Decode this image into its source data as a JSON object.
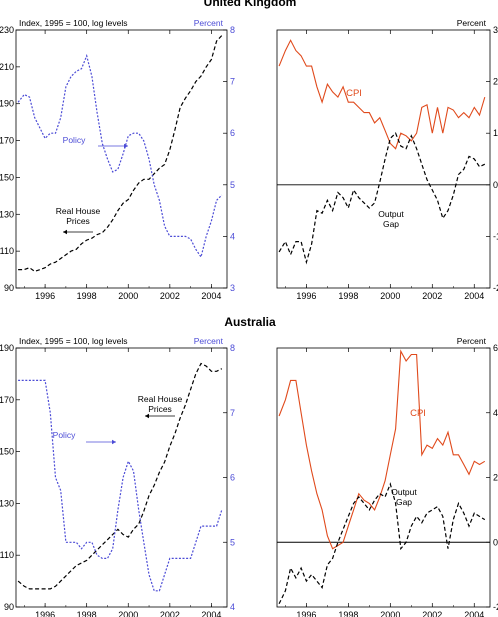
{
  "sections": [
    {
      "title": "United Kingdom"
    },
    {
      "title": "Australia"
    }
  ],
  "chart_data": [
    {
      "type": "line",
      "id": "uk-left",
      "title": "United Kingdom",
      "left_axis_label": "Index, 1995 = 100, log levels",
      "right_axis_label": "Percent",
      "xlim": [
        1994.6,
        2004.75
      ],
      "x_ticks": [
        1996,
        1998,
        2000,
        2002,
        2004
      ],
      "y_left": {
        "lim": [
          90,
          230
        ],
        "ticks": [
          90,
          110,
          130,
          150,
          170,
          190,
          210,
          230
        ]
      },
      "y_right": {
        "lim": [
          3,
          8
        ],
        "ticks": [
          3,
          4,
          5,
          6,
          7,
          8
        ]
      },
      "series": [
        {
          "name": "Real House Prices",
          "axis": "left",
          "color": "#000000",
          "dash": "long",
          "x": [
            1994.7,
            1995.0,
            1995.25,
            1995.5,
            1995.75,
            1996.0,
            1996.25,
            1996.5,
            1996.75,
            1997.0,
            1997.25,
            1997.5,
            1997.75,
            1998.0,
            1998.25,
            1998.5,
            1998.75,
            1999.0,
            1999.25,
            1999.5,
            1999.75,
            2000.0,
            2000.25,
            2000.5,
            2000.75,
            2001.0,
            2001.25,
            2001.5,
            2001.75,
            2002.0,
            2002.25,
            2002.5,
            2002.75,
            2003.0,
            2003.25,
            2003.5,
            2003.75,
            2004.0,
            2004.25,
            2004.5
          ],
          "y": [
            100,
            100,
            101,
            99,
            100,
            101,
            103,
            104,
            106,
            108,
            110,
            111,
            114,
            116,
            117,
            119,
            120,
            123,
            127,
            132,
            136,
            138,
            143,
            147,
            149,
            149,
            152,
            155,
            157,
            165,
            176,
            188,
            193,
            197,
            202,
            205,
            210,
            214,
            224,
            227
          ]
        },
        {
          "name": "Policy",
          "axis": "right",
          "color": "#4b4bd6",
          "dash": "short",
          "x": [
            1994.7,
            1995.0,
            1995.25,
            1995.5,
            1995.75,
            1996.0,
            1996.25,
            1996.5,
            1996.75,
            1997.0,
            1997.25,
            1997.5,
            1997.75,
            1998.0,
            1998.25,
            1998.5,
            1998.75,
            1999.0,
            1999.25,
            1999.5,
            1999.75,
            2000.0,
            2000.25,
            2000.5,
            2000.75,
            2001.0,
            2001.25,
            2001.5,
            2001.75,
            2002.0,
            2002.25,
            2002.5,
            2002.75,
            2003.0,
            2003.25,
            2003.5,
            2003.75,
            2004.0,
            2004.25,
            2004.5
          ],
          "y": [
            6.6,
            6.75,
            6.7,
            6.3,
            6.1,
            5.9,
            6.0,
            6.0,
            6.3,
            6.9,
            7.1,
            7.2,
            7.25,
            7.5,
            7.1,
            6.4,
            5.8,
            5.5,
            5.25,
            5.3,
            5.6,
            5.95,
            6.0,
            6.0,
            5.85,
            5.5,
            5.0,
            4.7,
            4.2,
            4.0,
            4.0,
            4.0,
            4.0,
            3.95,
            3.75,
            3.6,
            4.0,
            4.3,
            4.7,
            4.8
          ]
        }
      ],
      "annotations": [
        {
          "text": "Policy",
          "series": "Policy",
          "arrow": "right"
        },
        {
          "text": "Real House Prices",
          "series": "Real House Prices",
          "arrow": "left"
        }
      ]
    },
    {
      "type": "line",
      "id": "uk-right",
      "right_axis_label": "Percent",
      "xlim": [
        1994.6,
        2004.75
      ],
      "x_ticks": [
        1996,
        1998,
        2000,
        2002,
        2004
      ],
      "y_right": {
        "lim": [
          -2,
          3
        ],
        "ticks": [
          -2,
          -1,
          0,
          1,
          2,
          3
        ]
      },
      "zero_line": true,
      "series": [
        {
          "name": "CPI",
          "axis": "right",
          "color": "#e04a1c",
          "dash": "solid",
          "x": [
            1994.7,
            1995.0,
            1995.25,
            1995.5,
            1995.75,
            1996.0,
            1996.25,
            1996.5,
            1996.75,
            1997.0,
            1997.25,
            1997.5,
            1997.75,
            1998.0,
            1998.25,
            1998.5,
            1998.75,
            1999.0,
            1999.25,
            1999.5,
            1999.75,
            2000.0,
            2000.25,
            2000.5,
            2000.75,
            2001.0,
            2001.25,
            2001.5,
            2001.75,
            2002.0,
            2002.25,
            2002.5,
            2002.75,
            2003.0,
            2003.25,
            2003.5,
            2003.75,
            2004.0,
            2004.25,
            2004.5
          ],
          "y": [
            2.3,
            2.6,
            2.8,
            2.6,
            2.5,
            2.3,
            2.3,
            1.9,
            1.6,
            1.95,
            1.8,
            1.7,
            1.9,
            1.6,
            1.6,
            1.5,
            1.4,
            1.4,
            1.2,
            1.3,
            1.05,
            0.8,
            0.7,
            1.0,
            0.95,
            0.85,
            1.0,
            1.5,
            1.55,
            1.0,
            1.5,
            1.0,
            1.5,
            1.45,
            1.3,
            1.4,
            1.3,
            1.5,
            1.35,
            1.7
          ]
        },
        {
          "name": "Output Gap",
          "axis": "right",
          "color": "#000000",
          "dash": "long",
          "x": [
            1994.7,
            1995.0,
            1995.25,
            1995.5,
            1995.75,
            1996.0,
            1996.25,
            1996.5,
            1996.75,
            1997.0,
            1997.25,
            1997.5,
            1997.75,
            1998.0,
            1998.25,
            1998.5,
            1998.75,
            1999.0,
            1999.25,
            1999.5,
            1999.75,
            2000.0,
            2000.25,
            2000.5,
            2000.75,
            2001.0,
            2001.25,
            2001.5,
            2001.75,
            2002.0,
            2002.25,
            2002.5,
            2002.75,
            2003.0,
            2003.25,
            2003.5,
            2003.75,
            2004.0,
            2004.25,
            2004.5
          ],
          "y": [
            -1.3,
            -1.1,
            -1.35,
            -1.1,
            -1.1,
            -1.5,
            -1.15,
            -0.5,
            -0.55,
            -0.3,
            -0.5,
            -0.15,
            -0.25,
            -0.45,
            -0.1,
            -0.25,
            -0.35,
            -0.45,
            -0.35,
            0.05,
            0.5,
            0.9,
            1.0,
            0.75,
            0.7,
            0.95,
            0.7,
            0.4,
            0.1,
            -0.1,
            -0.3,
            -0.65,
            -0.5,
            -0.2,
            0.2,
            0.3,
            0.55,
            0.5,
            0.35,
            0.4
          ]
        }
      ],
      "annotations": [
        {
          "text": "CPI",
          "series": "CPI"
        },
        {
          "text": "Output Gap",
          "series": "Output Gap"
        }
      ]
    },
    {
      "type": "line",
      "id": "au-left",
      "title": "Australia",
      "left_axis_label": "Index, 1995 = 100, log levels",
      "right_axis_label": "Percent",
      "xlim": [
        1994.6,
        2004.75
      ],
      "x_ticks": [
        1996,
        1998,
        2000,
        2002,
        2004
      ],
      "y_left": {
        "lim": [
          90,
          190
        ],
        "ticks": [
          90,
          110,
          130,
          150,
          170,
          190
        ]
      },
      "y_right": {
        "lim": [
          4,
          8
        ],
        "ticks": [
          4,
          5,
          6,
          7,
          8
        ]
      },
      "series": [
        {
          "name": "Real House Prices",
          "axis": "left",
          "color": "#000000",
          "dash": "long",
          "x": [
            1994.7,
            1995.0,
            1995.25,
            1995.5,
            1995.75,
            1996.0,
            1996.25,
            1996.5,
            1996.75,
            1997.0,
            1997.25,
            1997.5,
            1997.75,
            1998.0,
            1998.25,
            1998.5,
            1998.75,
            1999.0,
            1999.25,
            1999.5,
            1999.75,
            2000.0,
            2000.25,
            2000.5,
            2000.75,
            2001.0,
            2001.25,
            2001.5,
            2001.75,
            2002.0,
            2002.25,
            2002.5,
            2002.75,
            2003.0,
            2003.25,
            2003.5,
            2003.75,
            2004.0,
            2004.25,
            2004.5
          ],
          "y": [
            100,
            98,
            97,
            97,
            97,
            97,
            97,
            98,
            100,
            102,
            104,
            106,
            107,
            108,
            110,
            112,
            114,
            116,
            118,
            120,
            118,
            117,
            120,
            122,
            127,
            133,
            137,
            142,
            146,
            152,
            157,
            163,
            168,
            174,
            180,
            184,
            183,
            181,
            181,
            182
          ]
        },
        {
          "name": "Policy",
          "axis": "right",
          "color": "#4b4bd6",
          "dash": "short",
          "x": [
            1994.7,
            1995.0,
            1995.25,
            1995.5,
            1995.75,
            1996.0,
            1996.25,
            1996.5,
            1996.75,
            1997.0,
            1997.25,
            1997.5,
            1997.75,
            1998.0,
            1998.25,
            1998.5,
            1998.75,
            1999.0,
            1999.25,
            1999.5,
            1999.75,
            2000.0,
            2000.25,
            2000.5,
            2000.75,
            2001.0,
            2001.25,
            2001.5,
            2001.75,
            2002.0,
            2002.25,
            2002.5,
            2002.75,
            2003.0,
            2003.25,
            2003.5,
            2003.75,
            2004.0,
            2004.25,
            2004.5
          ],
          "y": [
            7.5,
            7.5,
            7.5,
            7.5,
            7.5,
            7.5,
            7.0,
            6.0,
            5.8,
            5.0,
            5.0,
            5.0,
            4.9,
            5.0,
            5.0,
            4.8,
            4.75,
            4.75,
            4.9,
            5.5,
            6.0,
            6.25,
            6.1,
            5.5,
            5.0,
            4.5,
            4.25,
            4.25,
            4.5,
            4.75,
            4.75,
            4.75,
            4.75,
            4.75,
            5.0,
            5.25,
            5.25,
            5.25,
            5.25,
            5.5
          ]
        }
      ],
      "annotations": [
        {
          "text": "Policy",
          "series": "Policy",
          "arrow": "right"
        },
        {
          "text": "Real House Prices",
          "series": "Real House Prices",
          "arrow": "left"
        }
      ]
    },
    {
      "type": "line",
      "id": "au-right",
      "right_axis_label": "Percent",
      "xlim": [
        1994.6,
        2004.75
      ],
      "x_ticks": [
        1996,
        1998,
        2000,
        2002,
        2004
      ],
      "y_right": {
        "lim": [
          -2,
          6
        ],
        "ticks": [
          -2,
          0,
          2,
          4,
          6
        ]
      },
      "zero_line": true,
      "series": [
        {
          "name": "CPI",
          "axis": "right",
          "color": "#e04a1c",
          "dash": "solid",
          "x": [
            1994.7,
            1995.0,
            1995.25,
            1995.5,
            1995.75,
            1996.0,
            1996.25,
            1996.5,
            1996.75,
            1997.0,
            1997.25,
            1997.5,
            1997.75,
            1998.0,
            1998.25,
            1998.5,
            1998.75,
            1999.0,
            1999.25,
            1999.5,
            1999.75,
            2000.0,
            2000.25,
            2000.5,
            2000.75,
            2001.0,
            2001.25,
            2001.5,
            2001.75,
            2002.0,
            2002.25,
            2002.5,
            2002.75,
            2003.0,
            2003.25,
            2003.5,
            2003.75,
            2004.0,
            2004.25,
            2004.5
          ],
          "y": [
            3.9,
            4.4,
            5.0,
            5.0,
            4.0,
            3.0,
            2.2,
            1.5,
            1.0,
            0.2,
            -0.2,
            -0.1,
            0.0,
            0.5,
            1.0,
            1.5,
            1.3,
            1.2,
            1.0,
            1.4,
            1.9,
            2.7,
            3.5,
            5.9,
            5.6,
            5.8,
            5.8,
            2.7,
            3.0,
            2.9,
            3.2,
            3.0,
            3.4,
            2.7,
            2.7,
            2.4,
            2.1,
            2.5,
            2.4,
            2.5
          ]
        },
        {
          "name": "Output Gap",
          "axis": "right",
          "color": "#000000",
          "dash": "long",
          "x": [
            1994.7,
            1995.0,
            1995.25,
            1995.5,
            1995.75,
            1996.0,
            1996.25,
            1996.5,
            1996.75,
            1997.0,
            1997.25,
            1997.5,
            1997.75,
            1998.0,
            1998.25,
            1998.5,
            1998.75,
            1999.0,
            1999.25,
            1999.5,
            1999.75,
            2000.0,
            2000.25,
            2000.5,
            2000.75,
            2001.0,
            2001.25,
            2001.5,
            2001.75,
            2002.0,
            2002.25,
            2002.5,
            2002.75,
            2003.0,
            2003.25,
            2003.5,
            2003.75,
            2004.0,
            2004.25,
            2004.5
          ],
          "y": [
            -1.9,
            -1.5,
            -0.8,
            -1.1,
            -0.8,
            -1.2,
            -1.0,
            -1.2,
            -1.4,
            -0.7,
            -0.5,
            0.0,
            0.4,
            0.8,
            1.2,
            1.4,
            1.2,
            1.0,
            1.3,
            1.5,
            1.4,
            1.8,
            1.2,
            -0.2,
            0.0,
            0.5,
            0.8,
            0.6,
            0.9,
            1.0,
            1.1,
            0.8,
            -0.2,
            0.7,
            1.2,
            0.9,
            0.5,
            0.9,
            0.8,
            0.7
          ]
        }
      ],
      "annotations": [
        {
          "text": "CPI",
          "series": "CPI"
        },
        {
          "text": "Output Gap",
          "series": "Output Gap"
        }
      ]
    }
  ]
}
